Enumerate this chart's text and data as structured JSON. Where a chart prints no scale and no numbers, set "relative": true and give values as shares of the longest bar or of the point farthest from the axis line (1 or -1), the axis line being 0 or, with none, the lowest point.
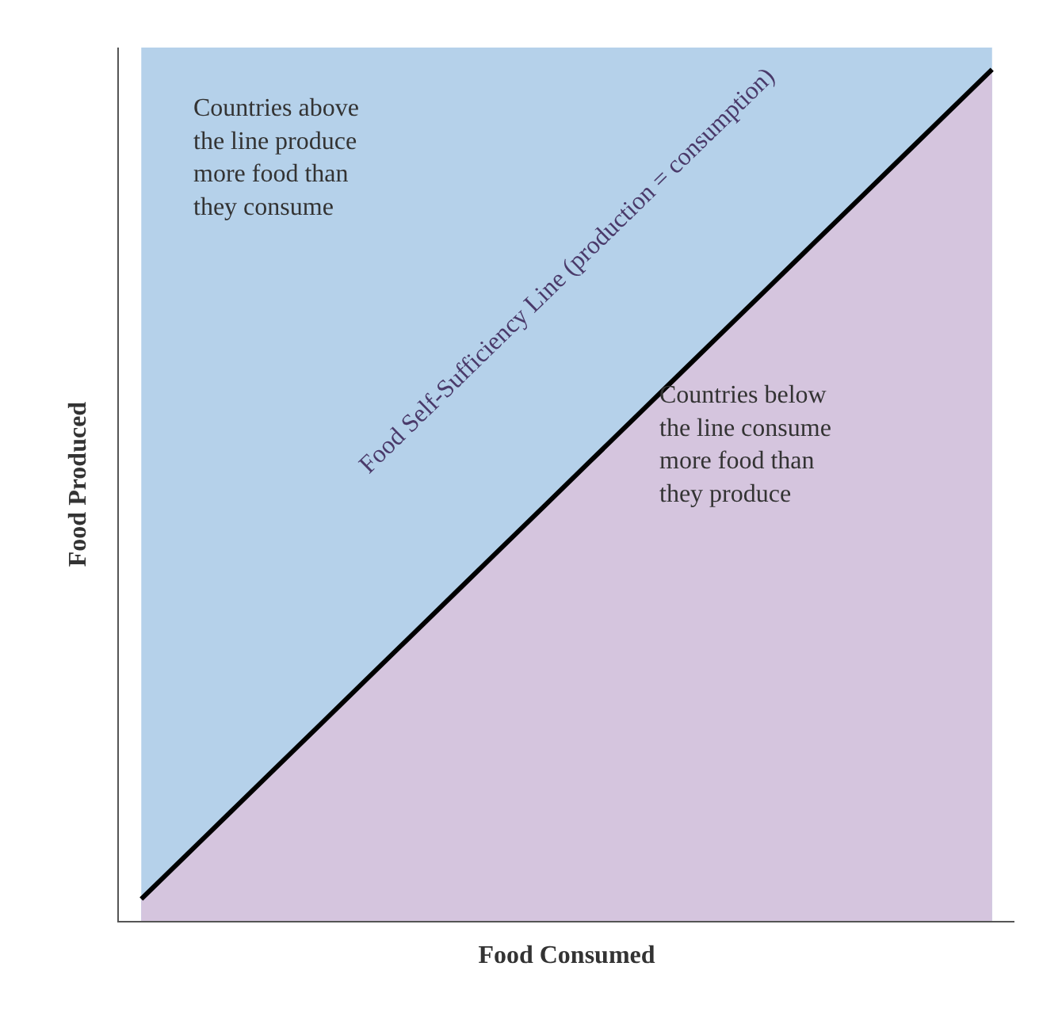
{
  "chart_data": {
    "type": "area",
    "relative": true,
    "tick_labels": false,
    "xlabel": "Food Consumed",
    "ylabel": "Food Produced",
    "categories": [
      null,
      null,
      null,
      null,
      null,
      null,
      null,
      null,
      null,
      null,
      null,
      null,
      null,
      null,
      null,
      null,
      null,
      null,
      null,
      null
    ],
    "series": [
      {
        "color": "#b5d1ea",
        "values": [
          1,
          1,
          1,
          1,
          1,
          1,
          1,
          1,
          1,
          1,
          1,
          1,
          1,
          1,
          1,
          1,
          1,
          1,
          1,
          1
        ]
      },
      {
        "color": "#d5c5de",
        "values": [
          0.025,
          0.075,
          0.125,
          0.175,
          0.225,
          0.275,
          0.325,
          0.375,
          0.425,
          0.475,
          0.525,
          0.575,
          0.625,
          0.675,
          0.725,
          0.775,
          0.825,
          0.875,
          0.925,
          0.975
        ]
      }
    ],
    "annotations": [
      "Countries above the line produce more food than they consume",
      "Food Self-Sufficiency Line (production = consumption)",
      "Countries below the line consume more food than they produce"
    ]
  }
}
